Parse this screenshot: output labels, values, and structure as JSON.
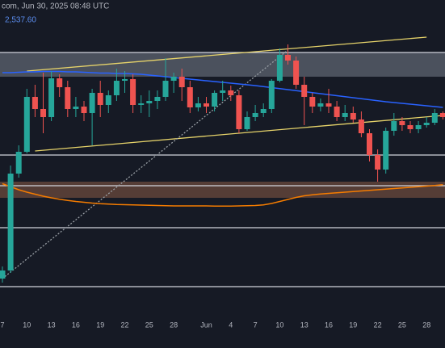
{
  "chart_data": {
    "type": "candlestick",
    "header": "com, Jun 30, 2025 08:48 UTC",
    "ma_label": "2,537.60",
    "categories": [
      "7",
      null,
      null,
      "10",
      null,
      null,
      "13",
      null,
      null,
      "16",
      null,
      null,
      "19",
      null,
      null,
      "22",
      null,
      null,
      "25",
      null,
      null,
      "28",
      null,
      null,
      null,
      "Jun",
      null,
      null,
      "4",
      null,
      null,
      "7",
      null,
      null,
      "10",
      null,
      null,
      "13",
      null,
      null,
      "16",
      null,
      null,
      "19",
      null,
      null,
      "22",
      null,
      null,
      "25",
      null,
      null,
      "28",
      null,
      null
    ],
    "open": [
      1760,
      1800,
      2280,
      2388,
      2660,
      2600,
      2560,
      2752,
      2708,
      2600,
      2612,
      2580,
      2680,
      2620,
      2668,
      2740,
      2748,
      2620,
      2628,
      2640,
      2660,
      2740,
      2760,
      2708,
      2608,
      2628,
      2612,
      2680,
      2692,
      2668,
      2500,
      2560,
      2580,
      2600,
      2740,
      2868,
      2840,
      2720,
      2660,
      2612,
      2628,
      2612,
      2560,
      2580,
      2548,
      2480,
      2372,
      2300,
      2492,
      2540,
      2520,
      2500,
      2520,
      2532,
      2580
    ],
    "high": [
      1820,
      2320,
      2420,
      2700,
      2720,
      2780,
      2788,
      2772,
      2740,
      2660,
      2640,
      2700,
      2740,
      2692,
      2800,
      2788,
      2772,
      2668,
      2692,
      2692,
      2852,
      2780,
      2800,
      2740,
      2660,
      2660,
      2692,
      2740,
      2716,
      2692,
      2588,
      2620,
      2628,
      2748,
      2900,
      2920,
      2860,
      2760,
      2680,
      2652,
      2700,
      2640,
      2620,
      2612,
      2588,
      2500,
      2400,
      2508,
      2580,
      2560,
      2540,
      2540,
      2560,
      2600,
      2588
    ],
    "low": [
      1740,
      1788,
      2260,
      2380,
      2560,
      2480,
      2540,
      2660,
      2560,
      2560,
      2540,
      2420,
      2560,
      2580,
      2640,
      2680,
      2580,
      2580,
      2560,
      2600,
      2640,
      2680,
      2640,
      2580,
      2588,
      2580,
      2588,
      2640,
      2640,
      2480,
      2492,
      2540,
      2560,
      2580,
      2732,
      2820,
      2700,
      2520,
      2580,
      2588,
      2580,
      2540,
      2540,
      2532,
      2460,
      2340,
      2240,
      2280,
      2468,
      2492,
      2480,
      2480,
      2508,
      2520,
      2548
    ],
    "close": [
      1800,
      2280,
      2388,
      2660,
      2600,
      2560,
      2752,
      2708,
      2600,
      2612,
      2580,
      2680,
      2620,
      2668,
      2740,
      2748,
      2620,
      2628,
      2640,
      2660,
      2740,
      2760,
      2708,
      2608,
      2628,
      2612,
      2680,
      2692,
      2668,
      2500,
      2560,
      2580,
      2600,
      2740,
      2868,
      2840,
      2720,
      2660,
      2612,
      2628,
      2612,
      2560,
      2580,
      2548,
      2480,
      2372,
      2300,
      2492,
      2540,
      2520,
      2500,
      2520,
      2532,
      2580,
      2560
    ],
    "up_color": "#26a69a",
    "down_color": "#ef5350",
    "lines": [
      {
        "color": "#2962ff",
        "values": [
          2780,
          2780,
          2782,
          2784,
          2784,
          2786,
          2786,
          2786,
          2784,
          2784,
          2782,
          2780,
          2778,
          2778,
          2776,
          2776,
          2774,
          2772,
          2768,
          2764,
          2760,
          2756,
          2752,
          2748,
          2744,
          2740,
          2736,
          2732,
          2728,
          2724,
          2720,
          2716,
          2711,
          2706,
          2701,
          2696,
          2691,
          2686,
          2681,
          2676,
          2671,
          2666,
          2661,
          2656,
          2651,
          2646,
          2641,
          2636,
          2632,
          2628,
          2624,
          2620,
          2616,
          2612,
          2608
        ]
      },
      {
        "color": "#f57c00",
        "values": [
          2230,
          2215,
          2200,
          2188,
          2178,
          2168,
          2160,
          2153,
          2147,
          2142,
          2138,
          2134,
          2131,
          2129,
          2127,
          2126,
          2125,
          2124,
          2123,
          2122,
          2121,
          2120,
          2120,
          2120,
          2120,
          2120,
          2119,
          2119,
          2119,
          2120,
          2121,
          2122,
          2125,
          2132,
          2142,
          2152,
          2162,
          2170,
          2175,
          2179,
          2182,
          2185,
          2188,
          2191,
          2194,
          2197,
          2200,
          2203,
          2206,
          2209,
          2212,
          2215,
          2218,
          2221,
          2225
        ]
      }
    ],
    "zones": [
      {
        "range": [
          2760,
          2880
        ],
        "color": "#5d6470"
      },
      {
        "range": [
          2160,
          2240
        ],
        "color": "#6b4a3c"
      }
    ],
    "levels": [
      2880,
      2372,
      2220,
      2012,
      1720
    ],
    "trendlines": [
      {
        "color": "#e6d36a",
        "x": [
          3,
          52
        ],
        "y": [
          2788,
          2956
        ]
      },
      {
        "color": "#e6d36a",
        "x": [
          4,
          54
        ],
        "y": [
          2392,
          2568
        ]
      },
      {
        "color": "#9aa0a6",
        "x": [
          0,
          35
        ],
        "y": [
          1760,
          2892
        ],
        "dashed": true
      }
    ],
    "ylim": [
      1416,
      3140
    ]
  }
}
